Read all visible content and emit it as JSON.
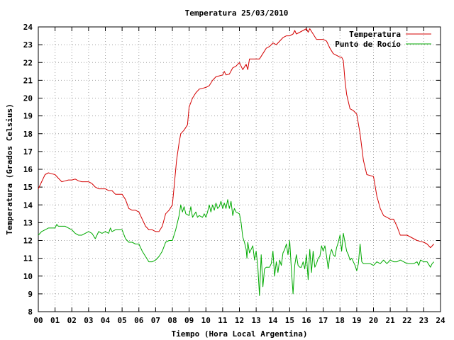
{
  "chart_data": {
    "type": "line",
    "title": "Temperatura 25/03/2010",
    "xlabel": "Tiempo (Hora Local Argentina)",
    "ylabel": "Temperatura (Grados Celsius)",
    "xlim": [
      0,
      24
    ],
    "ylim": [
      8,
      24
    ],
    "grid": true,
    "legend_position": "top-right",
    "x_ticks": [
      "00",
      "01",
      "02",
      "03",
      "04",
      "05",
      "06",
      "07",
      "08",
      "09",
      "10",
      "11",
      "12",
      "13",
      "14",
      "15",
      "16",
      "17",
      "18",
      "19",
      "20",
      "21",
      "22",
      "23",
      "24"
    ],
    "y_ticks": [
      "8",
      "9",
      "10",
      "11",
      "12",
      "13",
      "14",
      "15",
      "16",
      "17",
      "18",
      "19",
      "20",
      "21",
      "22",
      "23",
      "24"
    ],
    "series": [
      {
        "name": "Temperatura",
        "color": "#d40000",
        "points": [
          [
            0.0,
            14.9
          ],
          [
            0.2,
            15.3
          ],
          [
            0.4,
            15.7
          ],
          [
            0.6,
            15.8
          ],
          [
            0.8,
            15.75
          ],
          [
            1.0,
            15.7
          ],
          [
            1.2,
            15.5
          ],
          [
            1.4,
            15.3
          ],
          [
            1.6,
            15.35
          ],
          [
            1.8,
            15.4
          ],
          [
            2.0,
            15.4
          ],
          [
            2.2,
            15.45
          ],
          [
            2.4,
            15.35
          ],
          [
            2.6,
            15.3
          ],
          [
            2.8,
            15.3
          ],
          [
            3.0,
            15.3
          ],
          [
            3.2,
            15.2
          ],
          [
            3.4,
            15.0
          ],
          [
            3.6,
            14.9
          ],
          [
            3.8,
            14.9
          ],
          [
            4.0,
            14.9
          ],
          [
            4.2,
            14.8
          ],
          [
            4.4,
            14.8
          ],
          [
            4.6,
            14.6
          ],
          [
            4.8,
            14.6
          ],
          [
            5.0,
            14.6
          ],
          [
            5.2,
            14.3
          ],
          [
            5.4,
            13.8
          ],
          [
            5.6,
            13.7
          ],
          [
            5.8,
            13.7
          ],
          [
            6.0,
            13.6
          ],
          [
            6.2,
            13.2
          ],
          [
            6.4,
            12.8
          ],
          [
            6.6,
            12.6
          ],
          [
            6.8,
            12.6
          ],
          [
            7.0,
            12.5
          ],
          [
            7.2,
            12.5
          ],
          [
            7.4,
            12.8
          ],
          [
            7.6,
            13.5
          ],
          [
            7.8,
            13.7
          ],
          [
            8.0,
            14.0
          ],
          [
            8.1,
            15.0
          ],
          [
            8.25,
            16.5
          ],
          [
            8.4,
            17.5
          ],
          [
            8.5,
            18.0
          ],
          [
            8.7,
            18.2
          ],
          [
            8.9,
            18.5
          ],
          [
            9.0,
            19.5
          ],
          [
            9.2,
            20.0
          ],
          [
            9.4,
            20.3
          ],
          [
            9.6,
            20.5
          ],
          [
            9.8,
            20.55
          ],
          [
            10.0,
            20.6
          ],
          [
            10.2,
            20.7
          ],
          [
            10.4,
            21.0
          ],
          [
            10.6,
            21.2
          ],
          [
            10.8,
            21.25
          ],
          [
            11.0,
            21.3
          ],
          [
            11.1,
            21.5
          ],
          [
            11.2,
            21.3
          ],
          [
            11.4,
            21.35
          ],
          [
            11.6,
            21.7
          ],
          [
            11.8,
            21.8
          ],
          [
            11.9,
            21.9
          ],
          [
            12.0,
            22.0
          ],
          [
            12.2,
            21.6
          ],
          [
            12.4,
            21.9
          ],
          [
            12.5,
            21.6
          ],
          [
            12.6,
            22.2
          ],
          [
            12.8,
            22.2
          ],
          [
            13.0,
            22.2
          ],
          [
            13.2,
            22.2
          ],
          [
            13.4,
            22.5
          ],
          [
            13.6,
            22.8
          ],
          [
            13.8,
            22.9
          ],
          [
            14.0,
            23.1
          ],
          [
            14.2,
            23.0
          ],
          [
            14.4,
            23.2
          ],
          [
            14.6,
            23.4
          ],
          [
            14.8,
            23.5
          ],
          [
            15.0,
            23.5
          ],
          [
            15.2,
            23.6
          ],
          [
            15.3,
            23.8
          ],
          [
            15.4,
            23.6
          ],
          [
            15.6,
            23.7
          ],
          [
            15.8,
            23.8
          ],
          [
            16.0,
            23.9
          ],
          [
            16.1,
            23.7
          ],
          [
            16.2,
            23.9
          ],
          [
            16.4,
            23.6
          ],
          [
            16.6,
            23.3
          ],
          [
            16.8,
            23.3
          ],
          [
            17.0,
            23.3
          ],
          [
            17.2,
            23.2
          ],
          [
            17.4,
            22.8
          ],
          [
            17.6,
            22.5
          ],
          [
            17.8,
            22.4
          ],
          [
            18.0,
            22.3
          ],
          [
            18.1,
            22.3
          ],
          [
            18.2,
            22.1
          ],
          [
            18.3,
            21.0
          ],
          [
            18.4,
            20.2
          ],
          [
            18.6,
            19.4
          ],
          [
            18.8,
            19.3
          ],
          [
            19.0,
            19.1
          ],
          [
            19.2,
            18.0
          ],
          [
            19.4,
            16.5
          ],
          [
            19.6,
            15.7
          ],
          [
            19.8,
            15.65
          ],
          [
            20.0,
            15.6
          ],
          [
            20.2,
            14.5
          ],
          [
            20.4,
            13.8
          ],
          [
            20.6,
            13.4
          ],
          [
            20.8,
            13.3
          ],
          [
            21.0,
            13.2
          ],
          [
            21.2,
            13.2
          ],
          [
            21.4,
            12.8
          ],
          [
            21.6,
            12.3
          ],
          [
            21.8,
            12.3
          ],
          [
            22.0,
            12.3
          ],
          [
            22.2,
            12.2
          ],
          [
            22.4,
            12.1
          ],
          [
            22.6,
            12.0
          ],
          [
            22.8,
            11.95
          ],
          [
            23.0,
            11.9
          ],
          [
            23.2,
            11.8
          ],
          [
            23.4,
            11.6
          ],
          [
            23.6,
            11.8
          ]
        ]
      },
      {
        "name": "Punto de Rocío",
        "color": "#00aa00",
        "points": [
          [
            0.0,
            12.3
          ],
          [
            0.2,
            12.5
          ],
          [
            0.4,
            12.6
          ],
          [
            0.6,
            12.7
          ],
          [
            0.8,
            12.7
          ],
          [
            1.0,
            12.7
          ],
          [
            1.1,
            12.9
          ],
          [
            1.2,
            12.8
          ],
          [
            1.4,
            12.8
          ],
          [
            1.6,
            12.8
          ],
          [
            1.8,
            12.7
          ],
          [
            2.0,
            12.6
          ],
          [
            2.2,
            12.4
          ],
          [
            2.4,
            12.3
          ],
          [
            2.6,
            12.3
          ],
          [
            2.8,
            12.4
          ],
          [
            3.0,
            12.5
          ],
          [
            3.2,
            12.4
          ],
          [
            3.4,
            12.1
          ],
          [
            3.6,
            12.5
          ],
          [
            3.8,
            12.4
          ],
          [
            4.0,
            12.5
          ],
          [
            4.2,
            12.4
          ],
          [
            4.3,
            12.7
          ],
          [
            4.4,
            12.5
          ],
          [
            4.6,
            12.6
          ],
          [
            4.8,
            12.6
          ],
          [
            5.0,
            12.6
          ],
          [
            5.2,
            12.1
          ],
          [
            5.4,
            11.9
          ],
          [
            5.6,
            11.9
          ],
          [
            5.8,
            11.8
          ],
          [
            6.0,
            11.8
          ],
          [
            6.2,
            11.4
          ],
          [
            6.4,
            11.1
          ],
          [
            6.6,
            10.8
          ],
          [
            6.8,
            10.8
          ],
          [
            7.0,
            10.9
          ],
          [
            7.2,
            11.1
          ],
          [
            7.4,
            11.4
          ],
          [
            7.6,
            11.9
          ],
          [
            7.8,
            12.0
          ],
          [
            8.0,
            12.0
          ],
          [
            8.2,
            12.6
          ],
          [
            8.4,
            13.4
          ],
          [
            8.5,
            14.0
          ],
          [
            8.6,
            13.6
          ],
          [
            8.7,
            13.9
          ],
          [
            8.8,
            13.5
          ],
          [
            9.0,
            13.4
          ],
          [
            9.1,
            13.9
          ],
          [
            9.2,
            13.3
          ],
          [
            9.4,
            13.6
          ],
          [
            9.5,
            13.3
          ],
          [
            9.6,
            13.4
          ],
          [
            9.8,
            13.3
          ],
          [
            9.9,
            13.5
          ],
          [
            10.0,
            13.3
          ],
          [
            10.1,
            13.6
          ],
          [
            10.2,
            14.0
          ],
          [
            10.3,
            13.6
          ],
          [
            10.4,
            14.0
          ],
          [
            10.5,
            13.7
          ],
          [
            10.6,
            14.1
          ],
          [
            10.7,
            13.8
          ],
          [
            10.8,
            13.9
          ],
          [
            10.9,
            14.2
          ],
          [
            11.0,
            13.8
          ],
          [
            11.1,
            14.1
          ],
          [
            11.2,
            13.8
          ],
          [
            11.3,
            14.3
          ],
          [
            11.4,
            13.8
          ],
          [
            11.5,
            14.2
          ],
          [
            11.6,
            13.4
          ],
          [
            11.7,
            13.8
          ],
          [
            11.8,
            13.6
          ],
          [
            12.0,
            13.5
          ],
          [
            12.1,
            13.0
          ],
          [
            12.2,
            12.2
          ],
          [
            12.3,
            11.9
          ],
          [
            12.4,
            11.5
          ],
          [
            12.45,
            11.0
          ],
          [
            12.5,
            11.9
          ],
          [
            12.6,
            11.3
          ],
          [
            12.8,
            11.7
          ],
          [
            12.9,
            10.9
          ],
          [
            13.0,
            11.4
          ],
          [
            13.1,
            10.5
          ],
          [
            13.2,
            8.9
          ],
          [
            13.3,
            11.2
          ],
          [
            13.4,
            9.4
          ],
          [
            13.5,
            10.4
          ],
          [
            13.6,
            10.5
          ],
          [
            13.8,
            10.5
          ],
          [
            13.9,
            10.7
          ],
          [
            14.0,
            11.4
          ],
          [
            14.1,
            10.0
          ],
          [
            14.2,
            10.8
          ],
          [
            14.3,
            10.2
          ],
          [
            14.4,
            10.9
          ],
          [
            14.5,
            10.6
          ],
          [
            14.6,
            11.3
          ],
          [
            14.7,
            11.5
          ],
          [
            14.8,
            11.8
          ],
          [
            14.9,
            11.2
          ],
          [
            15.0,
            12.0
          ],
          [
            15.1,
            10.4
          ],
          [
            15.2,
            9.0
          ],
          [
            15.3,
            10.6
          ],
          [
            15.4,
            11.2
          ],
          [
            15.5,
            10.6
          ],
          [
            15.6,
            10.5
          ],
          [
            15.7,
            10.5
          ],
          [
            15.8,
            10.8
          ],
          [
            15.9,
            10.4
          ],
          [
            16.0,
            11.2
          ],
          [
            16.1,
            9.8
          ],
          [
            16.2,
            11.5
          ],
          [
            16.3,
            10.2
          ],
          [
            16.4,
            11.4
          ],
          [
            16.5,
            10.5
          ],
          [
            16.6,
            10.7
          ],
          [
            16.7,
            11.0
          ],
          [
            16.8,
            11.1
          ],
          [
            16.9,
            11.7
          ],
          [
            17.0,
            11.4
          ],
          [
            17.1,
            11.7
          ],
          [
            17.2,
            11.1
          ],
          [
            17.3,
            10.4
          ],
          [
            17.4,
            11.2
          ],
          [
            17.5,
            11.5
          ],
          [
            17.6,
            11.2
          ],
          [
            17.7,
            11.1
          ],
          [
            17.8,
            11.6
          ],
          [
            17.9,
            11.9
          ],
          [
            18.0,
            12.3
          ],
          [
            18.1,
            11.4
          ],
          [
            18.2,
            12.4
          ],
          [
            18.3,
            11.9
          ],
          [
            18.4,
            11.4
          ],
          [
            18.5,
            11.2
          ],
          [
            18.6,
            10.9
          ],
          [
            18.7,
            11.0
          ],
          [
            18.8,
            10.8
          ],
          [
            18.9,
            10.6
          ],
          [
            19.0,
            10.3
          ],
          [
            19.1,
            10.7
          ],
          [
            19.2,
            11.8
          ],
          [
            19.3,
            10.8
          ],
          [
            19.4,
            10.7
          ],
          [
            19.6,
            10.7
          ],
          [
            19.8,
            10.7
          ],
          [
            20.0,
            10.6
          ],
          [
            20.2,
            10.8
          ],
          [
            20.4,
            10.7
          ],
          [
            20.6,
            10.9
          ],
          [
            20.8,
            10.7
          ],
          [
            21.0,
            10.9
          ],
          [
            21.2,
            10.8
          ],
          [
            21.4,
            10.8
          ],
          [
            21.6,
            10.9
          ],
          [
            21.8,
            10.8
          ],
          [
            22.0,
            10.7
          ],
          [
            22.2,
            10.7
          ],
          [
            22.4,
            10.7
          ],
          [
            22.6,
            10.8
          ],
          [
            22.7,
            10.6
          ],
          [
            22.8,
            10.9
          ],
          [
            23.0,
            10.8
          ],
          [
            23.2,
            10.8
          ],
          [
            23.4,
            10.5
          ],
          [
            23.5,
            10.7
          ],
          [
            23.6,
            10.8
          ]
        ]
      }
    ]
  }
}
